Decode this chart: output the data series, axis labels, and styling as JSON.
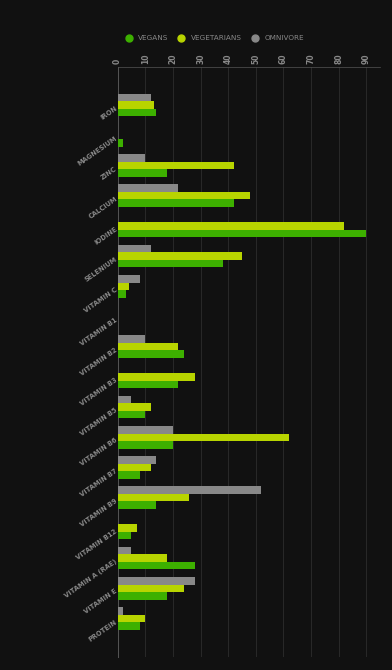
{
  "categories": [
    "IRON",
    "MAGNESIUM",
    "ZINC",
    "CALCIUM",
    "IODINE",
    "SELENIUM",
    "VITAMIN C",
    "VITAMIN B1",
    "VITAMIN B2",
    "VITAMIN B3",
    "VITAMIN B5",
    "VITAMIN B6",
    "VITAMIN B7",
    "VITAMIN B9",
    "VITAMIN B12",
    "VITAMIN A (RAE)",
    "VITAMIN E",
    "PROTEIN"
  ],
  "vegans": [
    14,
    2,
    18,
    42,
    90,
    38,
    3,
    0,
    24,
    22,
    10,
    20,
    8,
    14,
    5,
    28,
    18,
    8
  ],
  "vegetarians": [
    13,
    0,
    42,
    48,
    82,
    45,
    4,
    0,
    22,
    28,
    12,
    62,
    12,
    26,
    7,
    18,
    24,
    10
  ],
  "omnivores": [
    12,
    0,
    10,
    22,
    0,
    12,
    8,
    0,
    10,
    0,
    5,
    20,
    14,
    52,
    0,
    5,
    28,
    2
  ],
  "vegan_color": "#3db000",
  "vegetarian_color": "#b8d400",
  "omnivore_color": "#888888",
  "background_color": "#111111",
  "text_color": "#888888",
  "grid_color": "#333333",
  "xlim": [
    0,
    95
  ],
  "xticks": [
    0,
    10,
    20,
    30,
    40,
    50,
    60,
    70,
    80,
    90
  ],
  "bar_height": 0.25,
  "figsize": [
    3.92,
    6.7
  ],
  "dpi": 100
}
